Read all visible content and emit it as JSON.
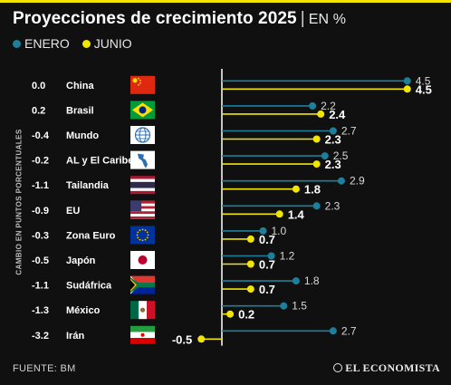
{
  "header": {
    "title": "Proyecciones de crecimiento 2025",
    "separator": "|",
    "unit": "EN %"
  },
  "legend": {
    "enero_label": "ENERO",
    "junio_label": "JUNIO",
    "enero_color": "#1e7f9a",
    "junio_color": "#f2e600"
  },
  "axis_label": "CAMBIO EN PUNTOS PORCENTUALES",
  "footer": {
    "source": "FUENTE: BM",
    "brand": "EL ECONOMISTA"
  },
  "chart_data": {
    "type": "lollipop",
    "title": "Proyecciones de crecimiento 2025",
    "unit": "EN %",
    "side_column_label": "CAMBIO EN PUNTOS PORCENTUALES",
    "series_names": [
      "ENERO",
      "JUNIO"
    ],
    "rows": [
      {
        "change": "0.0",
        "country": "China",
        "flag": "china-flag",
        "enero": 4.5,
        "junio": 4.5,
        "enero_label": "4.5",
        "junio_label": "4.5"
      },
      {
        "change": "0.2",
        "country": "Brasil",
        "flag": "brazil-flag",
        "enero": 2.2,
        "junio": 2.4,
        "enero_label": "2.2",
        "junio_label": "2.4"
      },
      {
        "change": "-0.4",
        "country": "Mundo",
        "flag": "globe-icon",
        "enero": 2.7,
        "junio": 2.3,
        "enero_label": "2.7",
        "junio_label": "2.3"
      },
      {
        "change": "-0.2",
        "country": "AL y El Caribe",
        "flag": "americas-map-icon",
        "enero": 2.5,
        "junio": 2.3,
        "enero_label": "2.5",
        "junio_label": "2.3"
      },
      {
        "change": "-1.1",
        "country": "Tailandia",
        "flag": "thailand-flag",
        "enero": 2.9,
        "junio": 1.8,
        "enero_label": "2.9",
        "junio_label": "1.8"
      },
      {
        "change": "-0.9",
        "country": "EU",
        "flag": "usa-flag",
        "enero": 2.3,
        "junio": 1.4,
        "enero_label": "2.3",
        "junio_label": "1.4"
      },
      {
        "change": "-0.3",
        "country": "Zona Euro",
        "flag": "eu-flag",
        "enero": 1.0,
        "junio": 0.7,
        "enero_label": "1.0",
        "junio_label": "0.7"
      },
      {
        "change": "-0.5",
        "country": "Japón",
        "flag": "japan-flag",
        "enero": 1.2,
        "junio": 0.7,
        "enero_label": "1.2",
        "junio_label": "0.7"
      },
      {
        "change": "-1.1",
        "country": "Sudáfrica",
        "flag": "south-africa-flag",
        "enero": 1.8,
        "junio": 0.7,
        "enero_label": "1.8",
        "junio_label": "0.7"
      },
      {
        "change": "-1.3",
        "country": "México",
        "flag": "mexico-flag",
        "enero": 1.5,
        "junio": 0.2,
        "enero_label": "1.5",
        "junio_label": "0.2"
      },
      {
        "change": "-3.2",
        "country": "Irán",
        "flag": "iran-flag",
        "enero": 2.7,
        "junio": -0.5,
        "enero_label": "2.7",
        "junio_label": "-0.5"
      }
    ],
    "xlim": [
      -0.5,
      4.5
    ],
    "grid": false
  }
}
